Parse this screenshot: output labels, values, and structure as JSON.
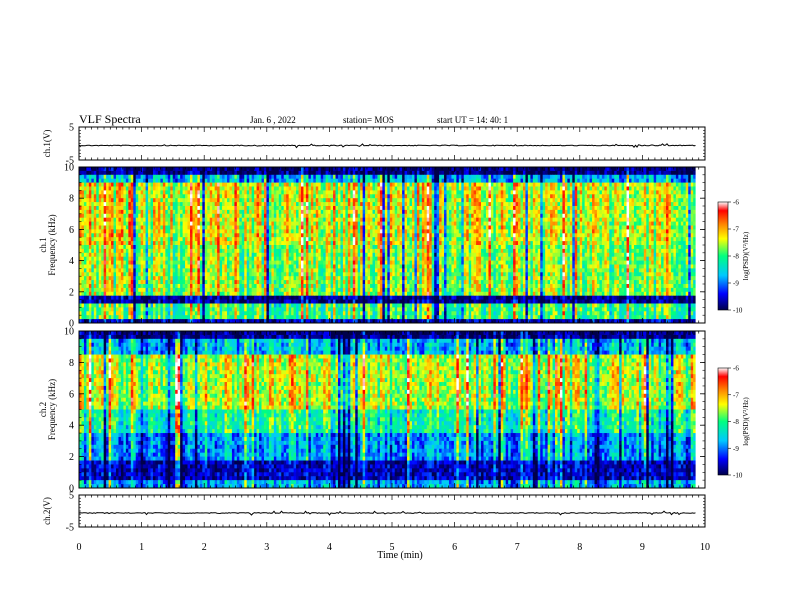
{
  "header": {
    "title": "VLF Spectra",
    "date": "Jan. 6 , 2022",
    "station": "station= MOS",
    "start": "start UT =  14: 40: 1"
  },
  "chart_data": [
    {
      "type": "line",
      "panel": "ch1-waveform",
      "ylabel": "ch.1(V)",
      "ylim": [
        -5,
        5
      ],
      "yticks": [
        "5",
        "-5"
      ],
      "xlim": [
        0,
        10
      ],
      "series": [
        {
          "values_approx": "flat near -0.5 V with small spikes"
        }
      ]
    },
    {
      "type": "heatmap",
      "panel": "ch1-spectrogram",
      "ylabel": "ch.1\nFrequency (kHz)",
      "ylim": [
        0,
        10
      ],
      "yticks": [
        "0",
        "2",
        "4",
        "6",
        "8",
        "10"
      ],
      "xlim": [
        0,
        10
      ],
      "colorbar": {
        "label": "log(PSD)(V²/Hz)",
        "range": [
          -10,
          -6
        ],
        "ticks": [
          "-6",
          "-7",
          "-8",
          "-9",
          "-10"
        ]
      }
    },
    {
      "type": "heatmap",
      "panel": "ch2-spectrogram",
      "ylabel": "ch.2\nFrequency (kHz)",
      "ylim": [
        0,
        10
      ],
      "yticks": [
        "0",
        "2",
        "4",
        "6",
        "8",
        "10"
      ],
      "xlim": [
        0,
        10
      ],
      "colorbar": {
        "label": "log(PSD)(V²/Hz)",
        "range": [
          -10,
          -6
        ],
        "ticks": [
          "-6",
          "-7",
          "-8",
          "-9",
          "-10"
        ]
      }
    },
    {
      "type": "line",
      "panel": "ch2-waveform",
      "ylabel": "ch.2(V)",
      "ylim": [
        -5,
        5
      ],
      "yticks": [
        "5",
        "-5"
      ],
      "xlim": [
        0,
        10
      ],
      "series": [
        {
          "values_approx": "flat near -0.5 V with small spikes"
        }
      ]
    }
  ],
  "xaxis": {
    "label": "Time (min)",
    "ticks": [
      "0",
      "1",
      "2",
      "3",
      "4",
      "5",
      "6",
      "7",
      "8",
      "9",
      "10"
    ],
    "data_end_min": 9.85
  },
  "colors": {
    "colormap": [
      "#00004a",
      "#0000ff",
      "#00c8ff",
      "#00ff80",
      "#ffff00",
      "#ff7f00",
      "#ff0000",
      "#ffffff"
    ]
  }
}
